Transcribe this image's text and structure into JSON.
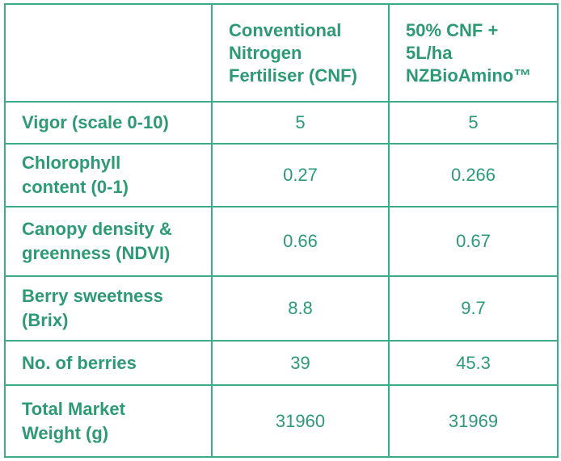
{
  "table": {
    "header": {
      "corner": "",
      "col1": "Conventional\nNitrogen\nFertiliser (CNF)",
      "col2": "50% CNF +\n5L/ha\nNZBioAmino™"
    },
    "rows": [
      {
        "label": "Vigor (scale 0-10)",
        "cnf": "5",
        "bio": "5"
      },
      {
        "label": "Chlorophyll\ncontent (0-1)",
        "cnf": "0.27",
        "bio": "0.266"
      },
      {
        "label": "Canopy density &\ngreenness (NDVI)",
        "cnf": "0.66",
        "bio": "0.67"
      },
      {
        "label": "Berry sweetness\n(Brix)",
        "cnf": "8.8",
        "bio": "9.7"
      },
      {
        "label": "No. of berries",
        "cnf": "39",
        "bio": "45.3"
      },
      {
        "label": "Total Market\nWeight (g)",
        "cnf": "31960",
        "bio": "31969"
      }
    ]
  },
  "colors": {
    "text": "#2d9a74",
    "border": "#3cab86",
    "background": "#ffffff"
  }
}
